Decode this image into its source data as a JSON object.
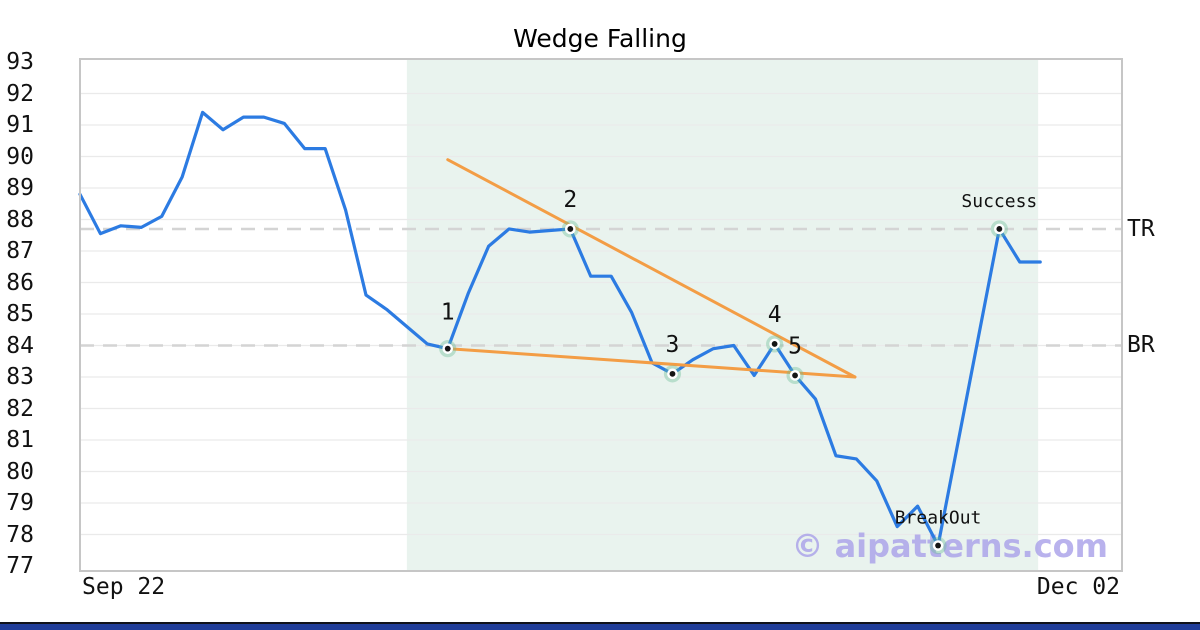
{
  "title": "Wedge Falling",
  "watermark": "© aipatterns.com",
  "x_axis": {
    "start_label": "Sep 22",
    "end_label": "Dec 02"
  },
  "y_axis": {
    "ticks": [
      93,
      92,
      91,
      90,
      89,
      88,
      87,
      86,
      85,
      84,
      83,
      82,
      81,
      80,
      79,
      78,
      77
    ]
  },
  "right_labels": {
    "tr": "TR",
    "br": "BR"
  },
  "colors": {
    "line": "#2c7be2",
    "trendline": "#f39d45",
    "shade": "#e9f3ee",
    "grid": "#eaeaea",
    "dash": "#d4d4d4",
    "border": "#c6c6c6",
    "marker_halo": "rgba(105,190,150,0.38)",
    "marker_ring": "#ffffff",
    "marker_dot": "#151515",
    "watermark": "#a89fe8",
    "bottom_bar": "#203d99",
    "text": "#111111"
  },
  "chart_data": {
    "type": "line",
    "title": "Wedge Falling",
    "x_range_labels": [
      "Sep 22",
      "Dec 02"
    ],
    "ylim": [
      77,
      93
    ],
    "grid": true,
    "values": [
      88.8,
      87.55,
      87.8,
      87.75,
      88.1,
      89.35,
      91.4,
      90.85,
      91.25,
      91.25,
      91.05,
      90.25,
      90.25,
      88.3,
      85.6,
      85.15,
      84.6,
      84.05,
      83.9,
      85.65,
      87.15,
      87.7,
      87.6,
      87.65,
      87.7,
      86.2,
      86.2,
      85.05,
      83.45,
      83.1,
      83.55,
      83.9,
      84.0,
      83.05,
      84.05,
      83.05,
      82.3,
      80.5,
      80.4,
      79.7,
      78.25,
      78.9,
      77.65,
      81.0,
      84.35,
      87.7,
      86.65,
      86.65
    ],
    "levels": [
      {
        "id": "tr",
        "label": "TR",
        "value": 87.7
      },
      {
        "id": "br",
        "label": "BR",
        "value": 84.0
      }
    ],
    "pattern_region": {
      "start_index": 16,
      "end_index": 46.9
    },
    "trendlines": [
      {
        "name": "upper",
        "from": [
          18,
          89.9
        ],
        "to": [
          37.93,
          83.0
        ]
      },
      {
        "name": "lower",
        "from": [
          18,
          83.9
        ],
        "to": [
          37.93,
          83.0
        ]
      }
    ],
    "markers": [
      {
        "label": "1",
        "index": 18,
        "value": 83.9
      },
      {
        "label": "2",
        "index": 24,
        "value": 87.7
      },
      {
        "label": "3",
        "index": 29,
        "value": 83.1
      },
      {
        "label": "4",
        "index": 34,
        "value": 84.05
      },
      {
        "label": "5",
        "index": 35,
        "value": 83.05
      },
      {
        "label": "BreakOut",
        "index": 42,
        "value": 77.65
      },
      {
        "label": "Success",
        "index": 45,
        "value": 87.7
      }
    ]
  }
}
